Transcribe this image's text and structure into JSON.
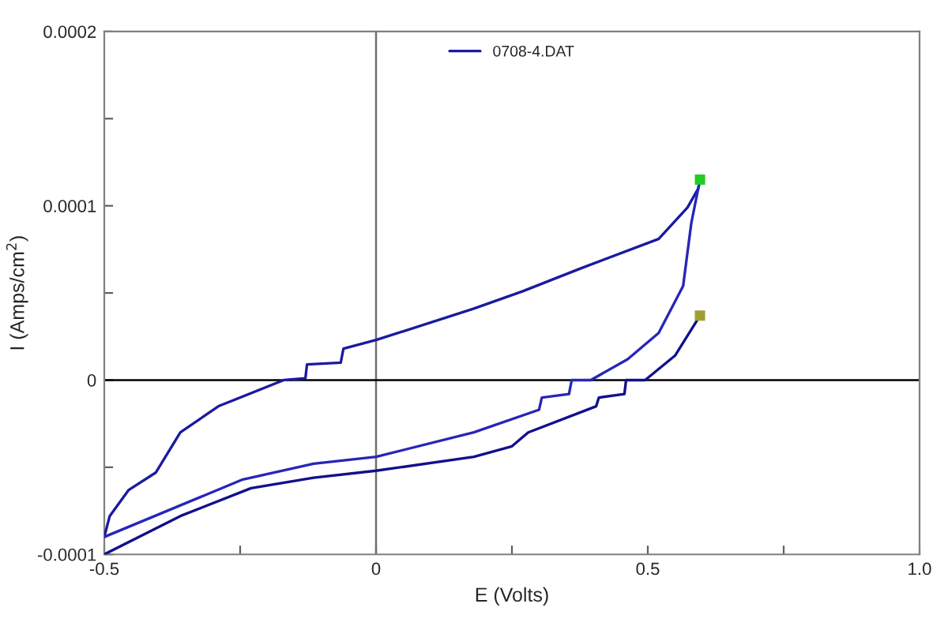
{
  "chart_data": {
    "type": "line",
    "xlabel": "E (Volts)",
    "ylabel": "I (Amps/cm$^{2}$)",
    "xlim": [
      -0.5,
      1.0
    ],
    "ylim": [
      -0.0001,
      0.0002
    ],
    "xticks": [
      {
        "value": -0.5,
        "label": "-0.5"
      },
      {
        "value": -0.25,
        "label": null
      },
      {
        "value": 0,
        "label": "0"
      },
      {
        "value": 0.25,
        "label": null
      },
      {
        "value": 0.5,
        "label": "0.5"
      },
      {
        "value": 0.75,
        "label": null
      },
      {
        "value": 1.0,
        "label": "1.0"
      }
    ],
    "yticks": [
      {
        "value": -0.0001,
        "label": "-0.0001"
      },
      {
        "value": -5e-05,
        "label": null
      },
      {
        "value": 0,
        "label": "0"
      },
      {
        "value": 5e-05,
        "label": null
      },
      {
        "value": 0.0001,
        "label": "0.0001"
      },
      {
        "value": 0.00015,
        "label": null
      },
      {
        "value": 0.0002,
        "label": "0.0002"
      }
    ],
    "grid": false,
    "legend": "top",
    "line_style": "solid",
    "ref_lines": [
      {
        "axis": "x",
        "value": 0,
        "color": "#707070"
      },
      {
        "axis": "y",
        "value": 0,
        "color": "#000000"
      }
    ],
    "series": [
      {
        "name": "0708-4.DAT",
        "color": "#1a1aa0",
        "x": [
          -0.5,
          -0.49,
          -0.455,
          -0.405,
          -0.36,
          -0.29,
          -0.17,
          -0.13,
          -0.127,
          -0.065,
          -0.06,
          0,
          0.18,
          0.27,
          0.376,
          0.52,
          0.573,
          0.593,
          0.596
        ],
        "values": [
          -9e-05,
          -7.8e-05,
          -6.3e-05,
          -5.3e-05,
          -3e-05,
          -1.5e-05,
          0,
          1e-06,
          9e-06,
          1e-05,
          1.8e-05,
          2.3e-05,
          4.1e-05,
          5.1e-05,
          6.4e-05,
          8.1e-05,
          9.9e-05,
          0.00011,
          0.000115
        ]
      },
      {
        "color": "#2626b8",
        "x": [
          0.596,
          0.58,
          0.565,
          0.52,
          0.463,
          0.395,
          0.36,
          0.355,
          0.305,
          0.3,
          0.18,
          0,
          -0.115,
          -0.245,
          -0.5
        ],
        "values": [
          0.000115,
          9e-05,
          5.4e-05,
          2.7e-05,
          1.2e-05,
          0,
          0,
          -8e-06,
          -1e-05,
          -1.7e-05,
          -3e-05,
          -4.4e-05,
          -4.8e-05,
          -5.7e-05,
          -9e-05
        ]
      },
      {
        "color": "#10108c",
        "x": [
          -0.5,
          -0.36,
          -0.23,
          -0.115,
          0,
          0.18,
          0.25,
          0.28,
          0.405,
          0.41,
          0.457,
          0.46,
          0.495,
          0.55,
          0.596
        ],
        "values": [
          -0.0001,
          -7.8e-05,
          -6.2e-05,
          -5.6e-05,
          -5.2e-05,
          -4.4e-05,
          -3.8e-05,
          -3e-05,
          -1.5e-05,
          -1e-05,
          -8e-06,
          0,
          0,
          1.4e-05,
          3.7e-05
        ]
      },
      {
        "type": "scatter",
        "marker": "square",
        "x": [
          0.596,
          0.596
        ],
        "colors": [
          "#22cc22",
          "#a0a030"
        ],
        "values": [
          0.000115,
          3.7e-05
        ]
      }
    ]
  }
}
